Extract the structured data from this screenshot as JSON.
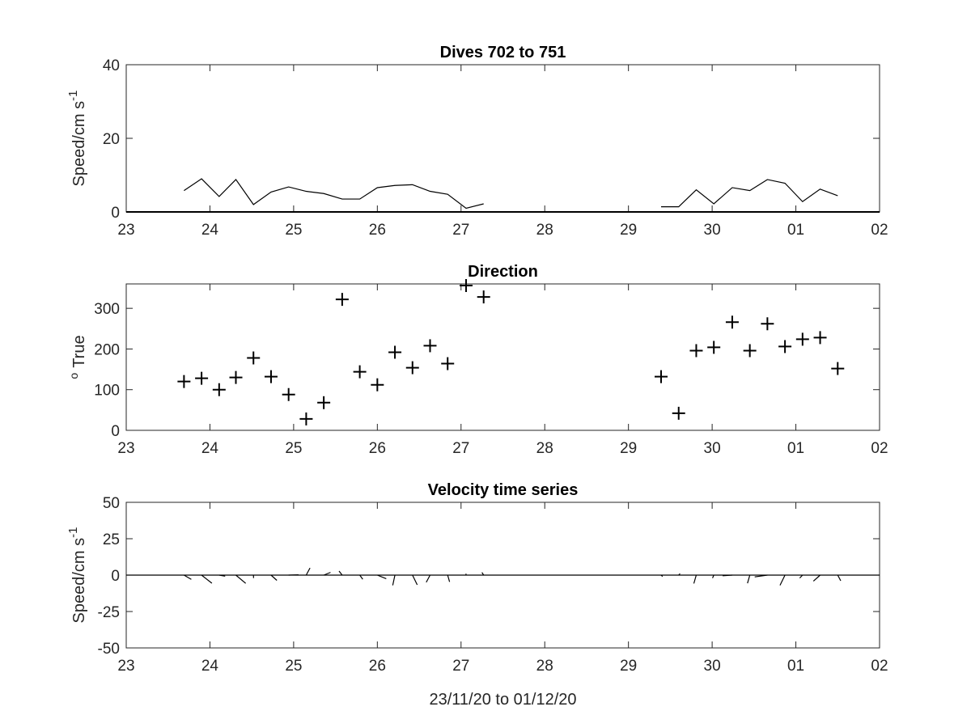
{
  "colors": {
    "line": "#000000",
    "axis": "#262626",
    "background": "#ffffff"
  },
  "chart_data": [
    {
      "type": "line",
      "title": "Dives 702 to 751",
      "ylabel": "Speed/cm s",
      "ylabel_superscript": "-1",
      "xlabel": "",
      "xlim": [
        23,
        32
      ],
      "ylim": [
        0,
        40
      ],
      "x_ticks": [
        "23",
        "24",
        "25",
        "26",
        "27",
        "28",
        "29",
        "30",
        "01",
        "02"
      ],
      "y_ticks": [
        "0",
        "20",
        "40"
      ],
      "y_tick_values": [
        0,
        20,
        40
      ],
      "grid": false,
      "series": [
        {
          "segments": [
            {
              "x": [
                23.69,
                23.9,
                24.11,
                24.31,
                24.52,
                24.73,
                24.94,
                25.15,
                25.36,
                25.58,
                25.79,
                26.0,
                26.21,
                26.42,
                26.63,
                26.84,
                27.06,
                27.27
              ],
              "y": [
                5.8,
                9.0,
                4.2,
                8.8,
                2.0,
                5.4,
                6.8,
                5.6,
                5.0,
                3.5,
                3.5,
                6.6,
                7.2,
                7.4,
                5.6,
                4.8,
                1.0,
                2.2
              ]
            },
            {
              "x": [
                29.39,
                29.6,
                29.81,
                30.02,
                30.24,
                30.45,
                30.66,
                30.87,
                31.08,
                31.29,
                31.5
              ],
              "y": [
                1.4,
                1.4,
                6.0,
                2.2,
                6.6,
                5.8,
                8.8,
                7.8,
                2.8,
                6.2,
                4.4
              ]
            }
          ]
        }
      ]
    },
    {
      "type": "scatter",
      "title": "Direction",
      "ylabel": "True",
      "ylabel_prefix": "o",
      "xlabel": "",
      "xlim": [
        23,
        32
      ],
      "ylim": [
        0,
        360
      ],
      "x_ticks": [
        "23",
        "24",
        "25",
        "26",
        "27",
        "28",
        "29",
        "30",
        "01",
        "02"
      ],
      "y_ticks": [
        "0",
        "100",
        "200",
        "300"
      ],
      "y_tick_values": [
        0,
        100,
        200,
        300
      ],
      "marker": "+",
      "grid": false,
      "x": [
        23.69,
        23.9,
        24.11,
        24.31,
        24.52,
        24.73,
        24.94,
        25.15,
        25.36,
        25.58,
        25.79,
        26.0,
        26.21,
        26.42,
        26.63,
        26.84,
        27.06,
        27.27,
        29.39,
        29.6,
        29.81,
        30.02,
        30.24,
        30.45,
        30.66,
        30.87,
        31.08,
        31.29,
        31.5
      ],
      "y": [
        120,
        128,
        100,
        130,
        178,
        132,
        88,
        28,
        68,
        322,
        144,
        112,
        192,
        154,
        208,
        164,
        356,
        328,
        132,
        42,
        196,
        204,
        266,
        196,
        262,
        206,
        224,
        228,
        152
      ]
    },
    {
      "type": "line",
      "title": "Velocity time series",
      "ylabel": "Speed/cm s",
      "ylabel_superscript": "-1",
      "xlabel": "23/11/20 to 01/12/20",
      "xlim": [
        23,
        32
      ],
      "ylim": [
        -50,
        50
      ],
      "x_ticks": [
        "23",
        "24",
        "25",
        "26",
        "27",
        "28",
        "29",
        "30",
        "01",
        "02"
      ],
      "y_ticks": [
        "-50",
        "-25",
        "0",
        "25",
        "50"
      ],
      "y_tick_values": [
        -50,
        -25,
        0,
        25,
        50
      ],
      "grid": false,
      "stick_x": [
        23.69,
        23.9,
        24.11,
        24.31,
        24.52,
        24.73,
        24.94,
        25.15,
        25.36,
        25.58,
        25.79,
        26.0,
        26.21,
        26.42,
        26.63,
        26.84,
        27.06,
        27.27,
        29.39,
        29.6,
        29.81,
        30.02,
        30.24,
        30.45,
        30.66,
        30.87,
        31.08,
        31.29,
        31.5
      ],
      "stick_speed": [
        5.8,
        9.0,
        4.2,
        8.8,
        2.0,
        5.4,
        6.8,
        5.6,
        5.0,
        3.5,
        3.5,
        6.6,
        7.2,
        7.4,
        5.6,
        4.8,
        1.0,
        2.2,
        1.4,
        1.4,
        6.0,
        2.2,
        6.6,
        5.8,
        8.8,
        7.8,
        2.8,
        6.2,
        4.4
      ],
      "stick_direction": [
        120,
        128,
        100,
        130,
        178,
        132,
        88,
        28,
        68,
        322,
        144,
        112,
        192,
        154,
        208,
        164,
        356,
        328,
        132,
        42,
        196,
        204,
        266,
        196,
        262,
        206,
        224,
        228,
        152
      ]
    }
  ]
}
